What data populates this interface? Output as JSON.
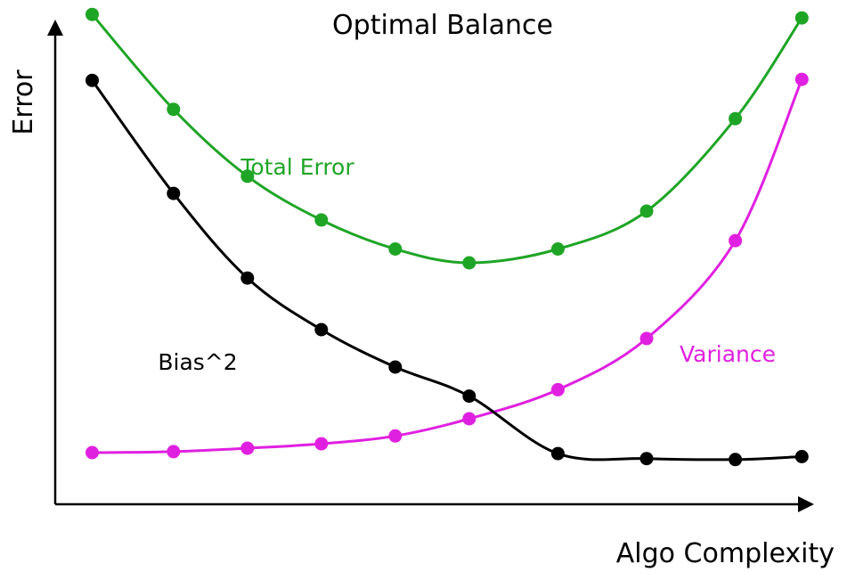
{
  "chart_data": {
    "type": "line",
    "title": "Optimal Balance",
    "xlabel": "Algo Complexity",
    "ylabel": "Error",
    "xlim": [
      0,
      10
    ],
    "ylim": [
      0,
      10
    ],
    "grid": false,
    "legend": "inline",
    "series": [
      {
        "name": "Total Error",
        "color": "#1fa526",
        "points": [
          [
            0.5,
            9.96
          ],
          [
            1.6,
            8.03
          ],
          [
            2.6,
            6.67
          ],
          [
            3.6,
            5.78
          ],
          [
            4.6,
            5.19
          ],
          [
            5.6,
            4.91
          ],
          [
            6.8,
            5.19
          ],
          [
            8.0,
            5.96
          ],
          [
            9.2,
            7.84
          ],
          [
            10.1,
            9.89
          ]
        ]
      },
      {
        "name": "Variance",
        "color": "#e020e0",
        "points": [
          [
            0.5,
            1.05
          ],
          [
            1.6,
            1.07
          ],
          [
            2.6,
            1.14
          ],
          [
            3.6,
            1.23
          ],
          [
            4.6,
            1.39
          ],
          [
            5.6,
            1.74
          ],
          [
            6.8,
            2.33
          ],
          [
            8.0,
            3.37
          ],
          [
            9.2,
            5.36
          ],
          [
            10.1,
            8.64
          ]
        ]
      },
      {
        "name": "Bias^2",
        "color": "#000000",
        "points": [
          [
            0.5,
            8.62
          ],
          [
            1.6,
            6.32
          ],
          [
            2.6,
            4.6
          ],
          [
            3.6,
            3.55
          ],
          [
            4.6,
            2.79
          ],
          [
            5.6,
            2.2
          ],
          [
            6.8,
            1.03
          ],
          [
            8.0,
            0.93
          ],
          [
            9.2,
            0.91
          ],
          [
            10.1,
            0.97
          ]
        ]
      }
    ]
  }
}
